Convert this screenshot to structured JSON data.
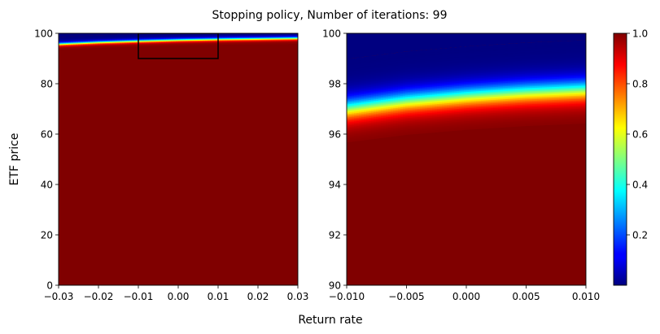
{
  "title": "Stopping policy, Number of iterations: 99",
  "xlabel": "Return rate",
  "ylabel": "ETF price",
  "colormap": "jet",
  "chart_data": [
    {
      "type": "heatmap",
      "panel": "full",
      "xlim": [
        -0.03,
        0.03
      ],
      "ylim": [
        0,
        100
      ],
      "xticks": [
        "−0.03",
        "−0.02",
        "−0.01",
        "0.00",
        "0.01",
        "0.02",
        "0.03"
      ],
      "xtick_values": [
        -0.03,
        -0.02,
        -0.01,
        0.0,
        0.01,
        0.02,
        0.03
      ],
      "yticks": [
        "0",
        "20",
        "40",
        "60",
        "80",
        "100"
      ],
      "ytick_values": [
        0,
        20,
        40,
        60,
        80,
        100
      ],
      "boundary": {
        "x": [
          -0.03,
          -0.02,
          -0.01,
          0.0,
          0.01,
          0.02,
          0.03
        ],
        "y": [
          95.7,
          96.4,
          96.9,
          97.3,
          97.6,
          97.8,
          98.0
        ]
      },
      "value_below_boundary": 1.0,
      "value_above_boundary": 0.0,
      "zoom_box": {
        "x": [
          -0.01,
          0.01
        ],
        "y": [
          90,
          100
        ]
      }
    },
    {
      "type": "heatmap",
      "panel": "zoom",
      "xlim": [
        -0.01,
        0.01
      ],
      "ylim": [
        90,
        100
      ],
      "xticks": [
        "−0.010",
        "−0.005",
        "0.000",
        "0.005",
        "0.010"
      ],
      "xtick_values": [
        -0.01,
        -0.005,
        0.0,
        0.005,
        0.01
      ],
      "yticks": [
        "90",
        "92",
        "94",
        "96",
        "98",
        "100"
      ],
      "ytick_values": [
        90,
        92,
        94,
        96,
        98,
        100
      ],
      "boundary": {
        "x": [
          -0.01,
          -0.005,
          0.0,
          0.005,
          0.01
        ],
        "y": [
          97.0,
          97.3,
          97.5,
          97.65,
          97.75
        ]
      },
      "transition_width": 0.9,
      "value_below_boundary": 1.0,
      "value_above_boundary": 0.0
    }
  ],
  "colorbar": {
    "range": [
      0.0,
      1.0
    ],
    "ticks": [
      "0.2",
      "0.4",
      "0.6",
      "0.8",
      "1.0"
    ],
    "tick_values": [
      0.2,
      0.4,
      0.6,
      0.8,
      1.0
    ]
  }
}
